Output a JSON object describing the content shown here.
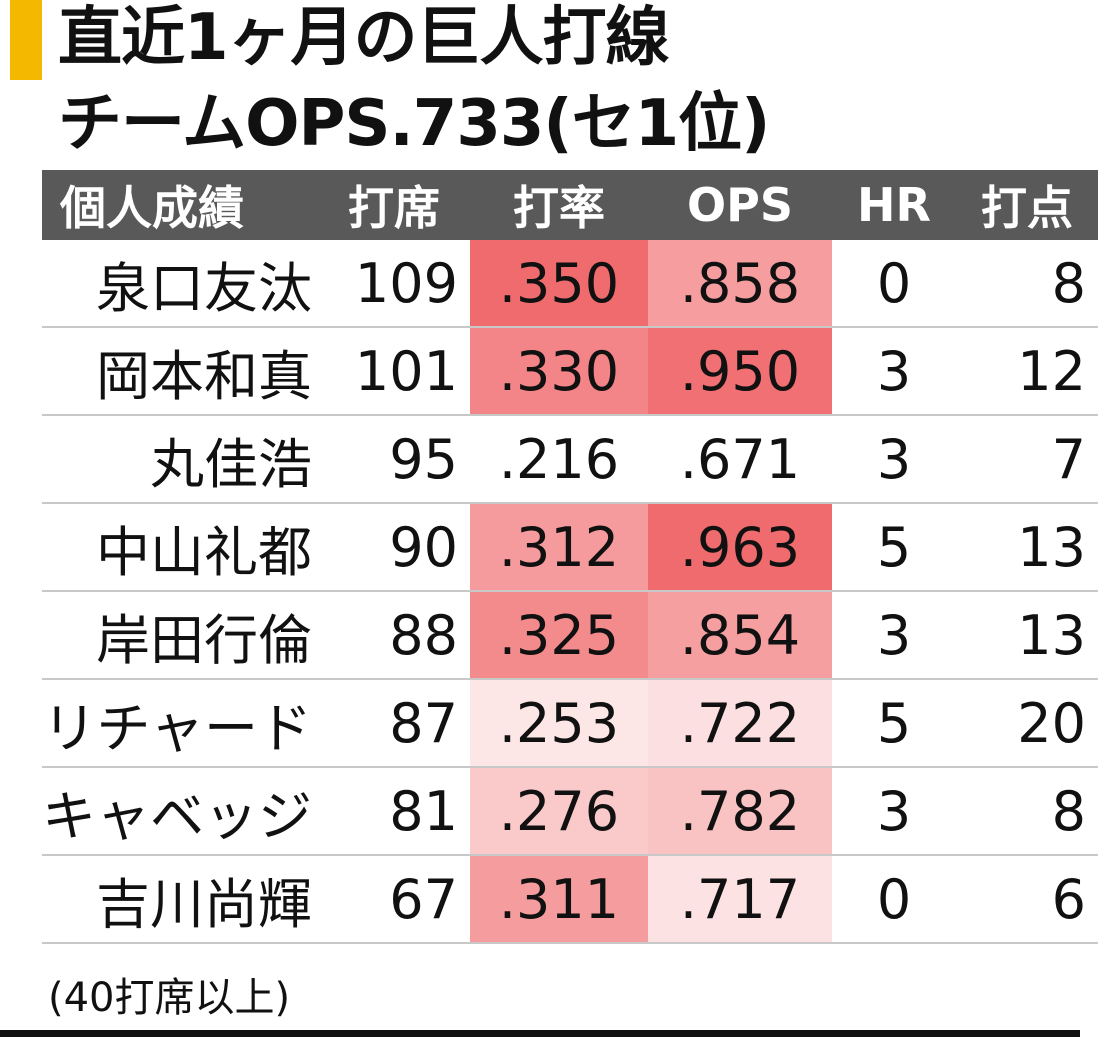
{
  "title_line1": "直近1ヶ月の巨人打線",
  "title_line2": "チームOPS.733(セ1位)",
  "footnote": "(40打席以上)",
  "colors": {
    "accent": "#f5b800",
    "header_bg": "#595959",
    "header_text": "#ffffff",
    "heat_high": "#f06b6e",
    "heat_low": "#fdeaea"
  },
  "chart_data": {
    "type": "table",
    "columns": [
      "個人成績",
      "打席",
      "打率",
      "OPS",
      "HR",
      "打点"
    ],
    "rows": [
      {
        "name": "泉口友汰",
        "pa": "109",
        "avg": ".350",
        "ops": ".858",
        "hr": "0",
        "rbi": "8"
      },
      {
        "name": "岡本和真",
        "pa": "101",
        "avg": ".330",
        "ops": ".950",
        "hr": "3",
        "rbi": "12"
      },
      {
        "name": "丸佳浩",
        "pa": "95",
        "avg": ".216",
        "ops": ".671",
        "hr": "3",
        "rbi": "7"
      },
      {
        "name": "中山礼都",
        "pa": "90",
        "avg": ".312",
        "ops": ".963",
        "hr": "5",
        "rbi": "13"
      },
      {
        "name": "岸田行倫",
        "pa": "88",
        "avg": ".325",
        "ops": ".854",
        "hr": "3",
        "rbi": "13"
      },
      {
        "name": "リチャード",
        "pa": "87",
        "avg": ".253",
        "ops": ".722",
        "hr": "5",
        "rbi": "20"
      },
      {
        "name": "キャベッジ",
        "pa": "81",
        "avg": ".276",
        "ops": ".782",
        "hr": "3",
        "rbi": "8"
      },
      {
        "name": "吉川尚輝",
        "pa": "67",
        "avg": ".311",
        "ops": ".717",
        "hr": "0",
        "rbi": "6"
      }
    ],
    "heat_scale": {
      "avg": [
        0.25,
        0.35
      ],
      "ops": [
        0.7,
        0.96
      ]
    }
  }
}
